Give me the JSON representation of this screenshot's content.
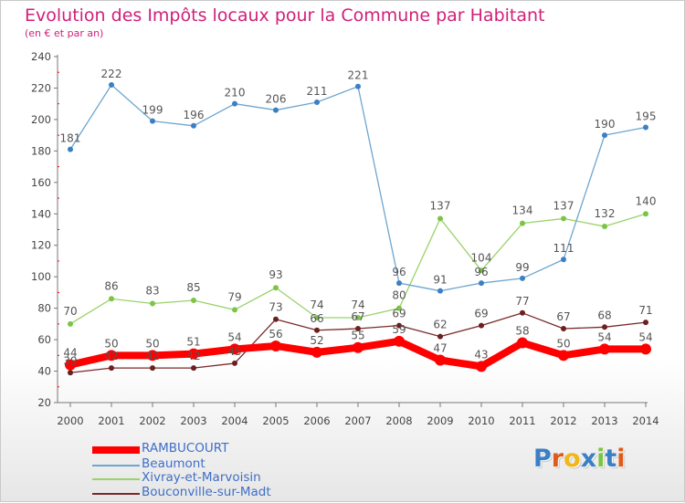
{
  "title": "Evolution des Impôts locaux pour la Commune par Habitant",
  "subtitle": "(en € et par an)",
  "logo_text": "Proxiti",
  "colors": {
    "title": "#d0207a",
    "axis": "#777777",
    "grid_tick": "#ff0000",
    "label": "#555555",
    "legend_text": "#3f6fc6"
  },
  "chart_data": {
    "type": "line",
    "title": "Evolution des Impôts locaux pour la Commune par Habitant",
    "subtitle": "(en € et par an)",
    "categories": [
      "2000",
      "2001",
      "2002",
      "2003",
      "2004",
      "2005",
      "2006",
      "2007",
      "2008",
      "2009",
      "2010",
      "2011",
      "2012",
      "2013",
      "2014"
    ],
    "ylim": [
      20,
      240
    ],
    "yticks": [
      20,
      40,
      60,
      80,
      100,
      120,
      140,
      160,
      180,
      200,
      220,
      240
    ],
    "grid": false,
    "legend_position": "bottom-left",
    "series": [
      {
        "name": "RAMBUCOURT",
        "values": [
          44,
          50,
          50,
          51,
          54,
          56,
          52,
          55,
          59,
          47,
          43,
          58,
          50,
          54,
          54
        ],
        "color": "#ff0000",
        "point_color": "#ff0000",
        "width": 8
      },
      {
        "name": "Beaumont",
        "values": [
          181,
          222,
          199,
          196,
          210,
          206,
          211,
          221,
          96,
          91,
          96,
          99,
          111,
          190,
          195
        ],
        "color": "#6ea6cf",
        "point_color": "#3b7fc4",
        "width": 1.3
      },
      {
        "name": "Xivray-et-Marvoisin",
        "values": [
          70,
          86,
          83,
          85,
          79,
          93,
          74,
          74,
          80,
          137,
          104,
          134,
          137,
          132,
          140
        ],
        "color": "#99d36a",
        "point_color": "#7cc444",
        "width": 1.3
      },
      {
        "name": "Bouconville-sur-Madt",
        "values": [
          39,
          42,
          42,
          42,
          45,
          73,
          66,
          67,
          69,
          62,
          69,
          77,
          67,
          68,
          71
        ],
        "color": "#7a2a2a",
        "point_color": "#6b1f1f",
        "width": 1.3
      }
    ]
  }
}
